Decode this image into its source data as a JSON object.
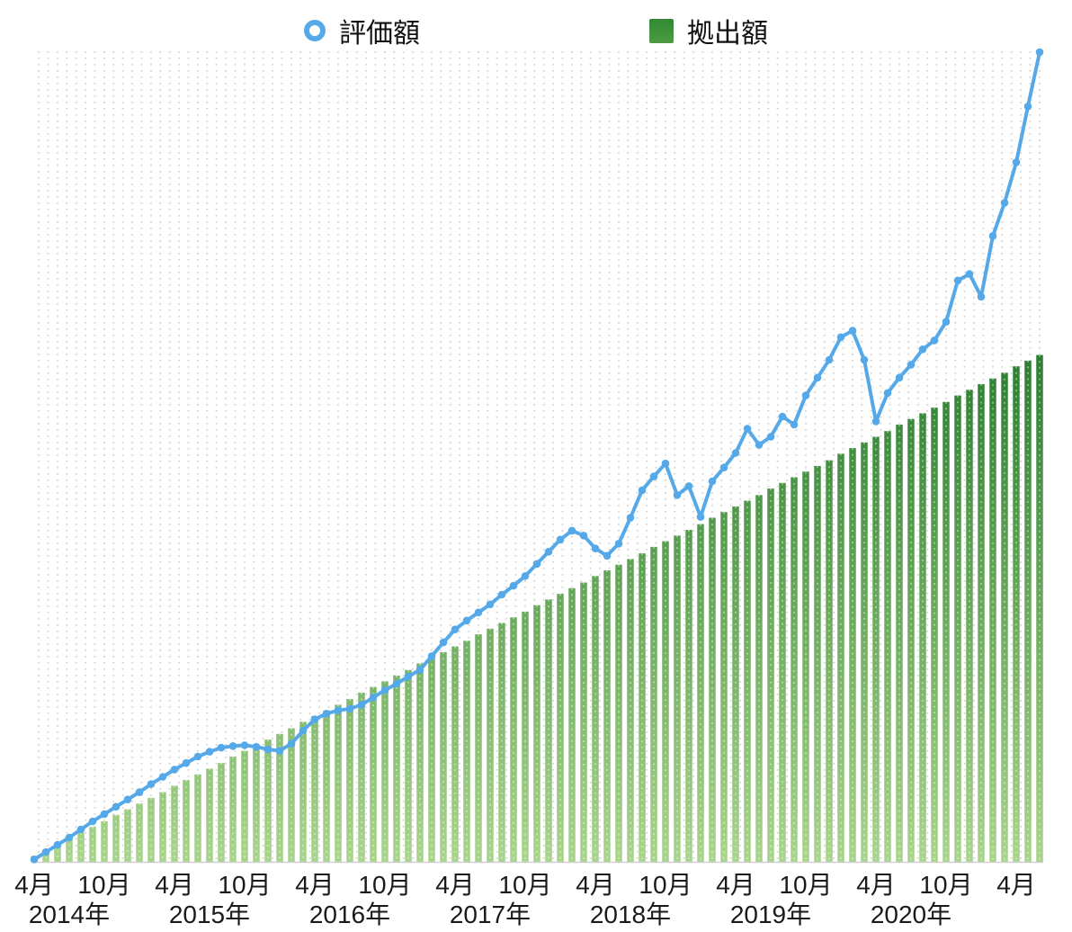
{
  "legend": {
    "items": [
      {
        "label": "評価額",
        "marker": "line-ring"
      },
      {
        "label": "拠出額",
        "marker": "bar-square"
      }
    ]
  },
  "colors": {
    "line": "#56a9e9",
    "bar_top": "#2b7e2f",
    "bar_bottom": "#a9d48b",
    "grid_dot": "#d7d7d7",
    "axis_line": "#cfcfcf",
    "text": "#1a1a1a"
  },
  "chart_data": {
    "type": "line+bar",
    "title": "",
    "legend_position": "top",
    "grid": "dotted-vertical-columns",
    "x": {
      "months": 87,
      "start_label": "4月 2014年",
      "tick_month_indices": [
        0,
        6,
        12,
        18,
        24,
        30,
        36,
        42,
        48,
        54,
        60,
        66,
        72,
        78,
        84
      ],
      "tick_labels": [
        "4月",
        "10月",
        "4月",
        "10月",
        "4月",
        "10月",
        "4月",
        "10月",
        "4月",
        "10月",
        "4月",
        "10月",
        "4月",
        "10月",
        "4月"
      ],
      "year_month_indices": [
        3,
        15,
        27,
        39,
        51,
        63,
        75
      ],
      "year_labels": [
        "2014年",
        "2015年",
        "2016年",
        "2017年",
        "2018年",
        "2019年",
        "2020年"
      ]
    },
    "y": {
      "visible": false,
      "unit": "percent_of_plot_height",
      "ylim": [
        0,
        100
      ]
    },
    "series": [
      {
        "name": "評価額",
        "type": "line",
        "color": "#56a9e9",
        "values": [
          0.3,
          1.2,
          2.1,
          3.0,
          4.0,
          5.0,
          5.9,
          6.8,
          7.7,
          8.6,
          9.6,
          10.5,
          11.4,
          12.2,
          13.0,
          13.6,
          14.1,
          14.3,
          14.4,
          14.2,
          13.9,
          13.7,
          14.6,
          16.2,
          17.6,
          18.3,
          18.7,
          18.9,
          19.4,
          20.3,
          21.2,
          22.0,
          22.9,
          23.7,
          25.4,
          27.1,
          28.7,
          29.8,
          30.8,
          31.8,
          33.0,
          34.1,
          35.3,
          36.8,
          38.3,
          39.8,
          40.9,
          40.3,
          38.7,
          37.8,
          39.3,
          42.5,
          45.9,
          47.6,
          49.2,
          45.3,
          46.4,
          42.6,
          47.0,
          48.7,
          50.5,
          53.5,
          51.5,
          52.5,
          55.0,
          54.0,
          57.6,
          59.8,
          62.0,
          64.8,
          65.6,
          62.0,
          54.4,
          57.9,
          59.8,
          61.4,
          63.3,
          64.4,
          66.7,
          71.8,
          72.6,
          69.8,
          77.3,
          81.4,
          86.4,
          93.3,
          100.0
        ]
      },
      {
        "name": "拠出額",
        "type": "bar",
        "color_top": "#2b7e2f",
        "color_bottom": "#a9d48b",
        "values": [
          0.7,
          1.4,
          2.2,
          2.9,
          3.6,
          4.3,
          5.0,
          5.8,
          6.5,
          7.2,
          7.9,
          8.6,
          9.4,
          10.1,
          10.8,
          11.5,
          12.2,
          13.0,
          13.7,
          14.4,
          15.1,
          15.8,
          16.5,
          17.3,
          18.0,
          18.7,
          19.4,
          20.1,
          20.9,
          21.6,
          22.3,
          23.0,
          23.7,
          24.5,
          25.2,
          25.9,
          26.6,
          27.3,
          28.1,
          28.8,
          29.5,
          30.2,
          30.9,
          31.7,
          32.4,
          33.1,
          33.8,
          34.5,
          35.3,
          36.0,
          36.7,
          37.4,
          38.1,
          38.9,
          39.6,
          40.3,
          41.0,
          41.7,
          42.5,
          43.2,
          43.9,
          44.6,
          45.3,
          46.1,
          46.8,
          47.5,
          48.2,
          48.9,
          49.6,
          50.4,
          51.1,
          51.8,
          52.5,
          53.2,
          54.0,
          54.7,
          55.4,
          56.1,
          56.8,
          57.6,
          58.3,
          59.0,
          59.7,
          60.4,
          61.2,
          61.9,
          62.6
        ]
      }
    ]
  }
}
